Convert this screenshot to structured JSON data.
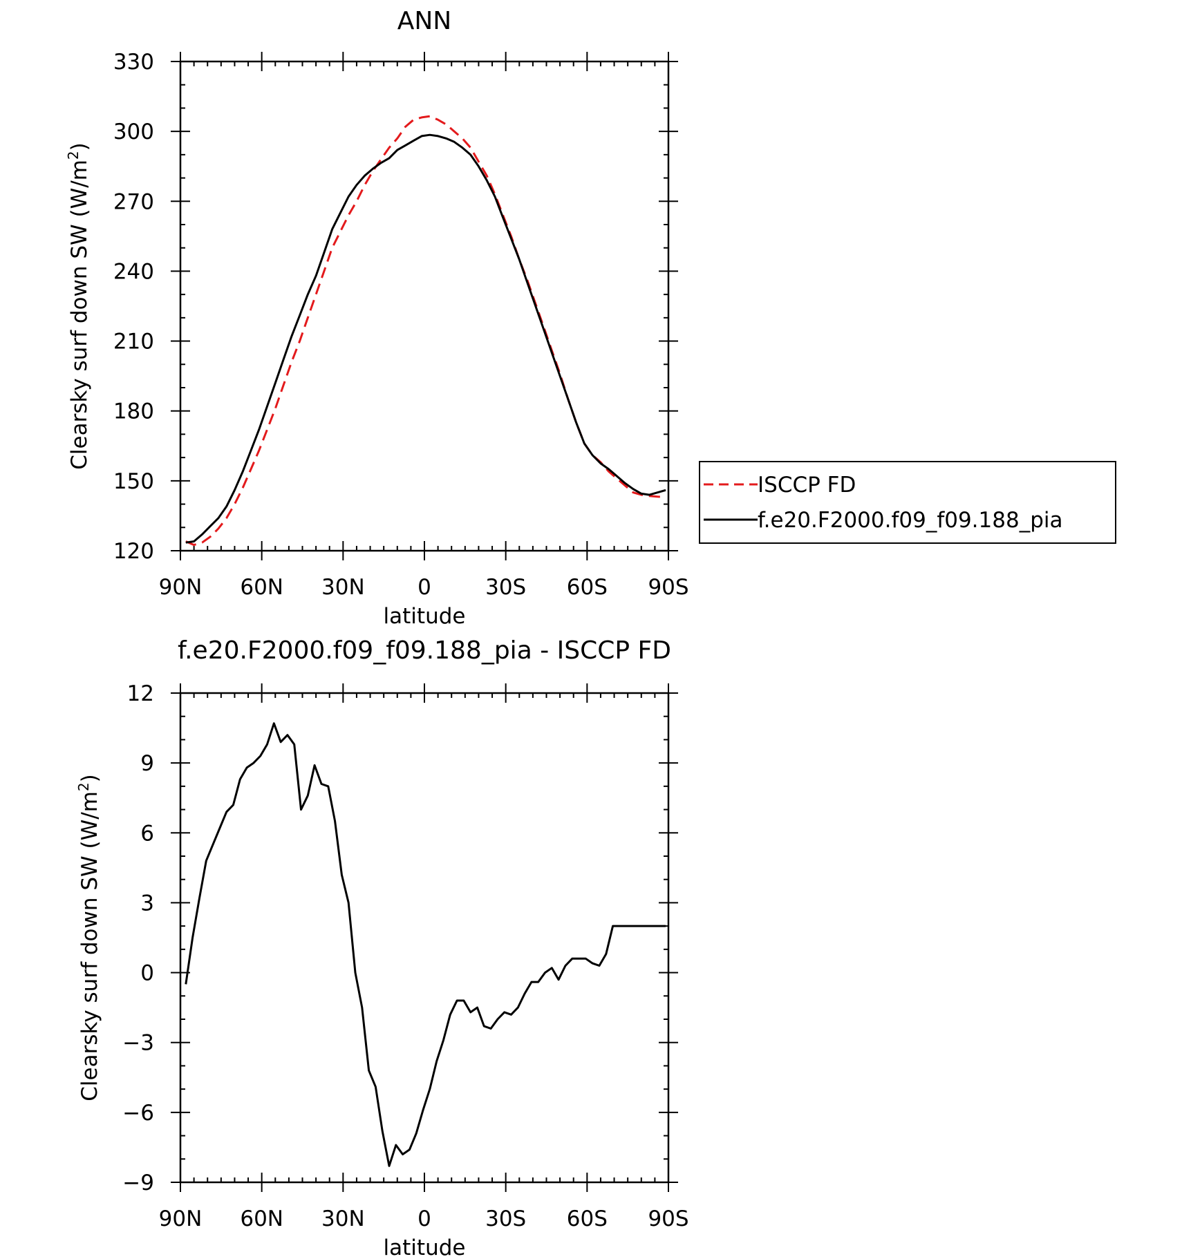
{
  "chart_data": [
    {
      "type": "line",
      "title": "ANN",
      "xlabel": "latitude",
      "ylabel": "Clearsky surf down SW (W/m²)",
      "ylabel_main": "Clearsky surf down SW (W/m",
      "ylabel_sup": "2",
      "ylabel_end": ")",
      "xlim": [
        -90,
        90
      ],
      "ylim": [
        120,
        330
      ],
      "xticks": [
        {
          "v": -90,
          "label": "90N"
        },
        {
          "v": -60,
          "label": "60N"
        },
        {
          "v": -30,
          "label": "30N"
        },
        {
          "v": 0,
          "label": "0"
        },
        {
          "v": 30,
          "label": "30S"
        },
        {
          "v": 60,
          "label": "60S"
        },
        {
          "v": 90,
          "label": "90S"
        }
      ],
      "yticks": [
        {
          "v": 120,
          "label": "120"
        },
        {
          "v": 150,
          "label": "150"
        },
        {
          "v": 180,
          "label": "180"
        },
        {
          "v": 210,
          "label": "210"
        },
        {
          "v": 240,
          "label": "240"
        },
        {
          "v": 270,
          "label": "270"
        },
        {
          "v": 300,
          "label": "300"
        },
        {
          "v": 330,
          "label": "330"
        }
      ],
      "legend_position": "right",
      "series": [
        {
          "name": "ISCCP FD",
          "color": "#e31a1c",
          "dash": "dashed",
          "x": [
            -88,
            -85,
            -82,
            -79,
            -76,
            -73,
            -70,
            -67,
            -64,
            -61,
            -58,
            -55,
            -52,
            -49,
            -46,
            -43,
            -40,
            -37,
            -34,
            -31,
            -28,
            -25,
            -22,
            -19,
            -16,
            -13,
            -10,
            -7,
            -4,
            -1,
            2,
            5,
            8,
            11,
            14,
            17,
            20,
            23,
            26,
            29,
            32,
            35,
            38,
            41,
            44,
            47,
            50,
            53,
            56,
            59,
            62,
            65,
            68,
            71,
            74,
            77,
            80,
            83,
            86,
            89
          ],
          "y": [
            124,
            122.5,
            123.5,
            126,
            129.5,
            134,
            140,
            147,
            155,
            163,
            172,
            181,
            191,
            201,
            210,
            220,
            230,
            240,
            250,
            257,
            264,
            270,
            277,
            283,
            288,
            293,
            297,
            302,
            305,
            306,
            306.5,
            305,
            303,
            300,
            297,
            293,
            287,
            281,
            273,
            264,
            255,
            245,
            236,
            226,
            216,
            206,
            196,
            185,
            175,
            166,
            161,
            158,
            154,
            151,
            148,
            145,
            144,
            143.5,
            143.2,
            143
          ]
        },
        {
          "name": "f.e20.F2000.f09_f09.188_pia",
          "color": "#000000",
          "dash": "solid",
          "x": [
            -88,
            -85,
            -82,
            -79,
            -76,
            -73,
            -70,
            -67,
            -64,
            -61,
            -58,
            -55,
            -52,
            -49,
            -46,
            -43,
            -40,
            -37,
            -34,
            -31,
            -28,
            -25,
            -22,
            -19,
            -16,
            -13,
            -10,
            -7,
            -4,
            -1,
            2,
            5,
            8,
            11,
            14,
            17,
            20,
            23,
            26,
            29,
            32,
            35,
            38,
            41,
            44,
            47,
            50,
            53,
            56,
            59,
            62,
            65,
            68,
            71,
            74,
            77,
            80,
            83,
            86,
            89
          ],
          "y": [
            123.5,
            124,
            127,
            130.5,
            134,
            139,
            146,
            154,
            163,
            172,
            182,
            192,
            202,
            212,
            221,
            230,
            238,
            248,
            258,
            265,
            272,
            277,
            281,
            284,
            286.5,
            288.5,
            292,
            294,
            296,
            298,
            298.5,
            298,
            297,
            295.5,
            293,
            290,
            285,
            279,
            272,
            263,
            254,
            245,
            235,
            225,
            215,
            205,
            195,
            185,
            175,
            166,
            161,
            157.5,
            155,
            152,
            149,
            146.5,
            144.5,
            144,
            145,
            146
          ]
        }
      ]
    },
    {
      "type": "line",
      "title": "f.e20.F2000.f09_f09.188_pia - ISCCP FD",
      "xlabel": "latitude",
      "ylabel": "Clearsky surf down SW (W/m²)",
      "ylabel_main": "Clearsky surf down SW (W/m",
      "ylabel_sup": "2",
      "ylabel_end": ")",
      "xlim": [
        -90,
        90
      ],
      "ylim": [
        -9,
        12
      ],
      "xticks": [
        {
          "v": -90,
          "label": "90N"
        },
        {
          "v": -60,
          "label": "60N"
        },
        {
          "v": -30,
          "label": "30N"
        },
        {
          "v": 0,
          "label": "0"
        },
        {
          "v": 30,
          "label": "30S"
        },
        {
          "v": 60,
          "label": "60S"
        },
        {
          "v": 90,
          "label": "90S"
        }
      ],
      "yticks": [
        {
          "v": -9,
          "label": "−9"
        },
        {
          "v": -6,
          "label": "−6"
        },
        {
          "v": -3,
          "label": "−3"
        },
        {
          "v": 0,
          "label": "0"
        },
        {
          "v": 3,
          "label": "3"
        },
        {
          "v": 6,
          "label": "6"
        },
        {
          "v": 9,
          "label": "9"
        },
        {
          "v": 12,
          "label": "12"
        }
      ],
      "series": [
        {
          "color": "#000000",
          "dash": "solid",
          "x": [
            -88,
            -85.5,
            -83,
            -80.5,
            -78,
            -75.5,
            -73,
            -70.5,
            -68,
            -65.5,
            -63,
            -60.5,
            -58,
            -55.5,
            -53,
            -50.5,
            -48,
            -45.5,
            -43,
            -40.5,
            -38,
            -35.5,
            -33,
            -30.5,
            -28,
            -25.5,
            -23,
            -20.5,
            -18,
            -15.5,
            -13,
            -10.5,
            -8,
            -5.5,
            -3,
            -0.5,
            2,
            4.5,
            7,
            9.5,
            12,
            14.5,
            17,
            19.5,
            22,
            24.5,
            27,
            29.5,
            32,
            34.5,
            37,
            39.5,
            42,
            44.5,
            47,
            49.5,
            52,
            54.5,
            57,
            59.5,
            62,
            64.5,
            67,
            69.5,
            72,
            74.5,
            77,
            79.5,
            82,
            84.5,
            87,
            89
          ],
          "y": [
            -0.5,
            1.5,
            3.2,
            4.8,
            5.5,
            6.2,
            6.9,
            7.2,
            8.3,
            8.8,
            9.0,
            9.3,
            9.8,
            10.7,
            9.9,
            10.2,
            9.8,
            7.0,
            7.6,
            8.9,
            8.1,
            8.0,
            6.5,
            4.2,
            3.0,
            0.0,
            -1.5,
            -4.2,
            -4.9,
            -6.8,
            -8.3,
            -7.4,
            -7.8,
            -7.6,
            -6.9,
            -5.9,
            -5.0,
            -3.8,
            -2.9,
            -1.8,
            -1.2,
            -1.2,
            -1.7,
            -1.5,
            -2.3,
            -2.4,
            -2.0,
            -1.7,
            -1.8,
            -1.5,
            -0.9,
            -0.4,
            -0.4,
            0.0,
            0.2,
            -0.3,
            0.3,
            0.6,
            0.6,
            0.6,
            0.4,
            0.3,
            0.8,
            2.0,
            2.0,
            2.0,
            2.0,
            2.0,
            2.0,
            2.0,
            2.0,
            2.0
          ]
        }
      ]
    }
  ]
}
